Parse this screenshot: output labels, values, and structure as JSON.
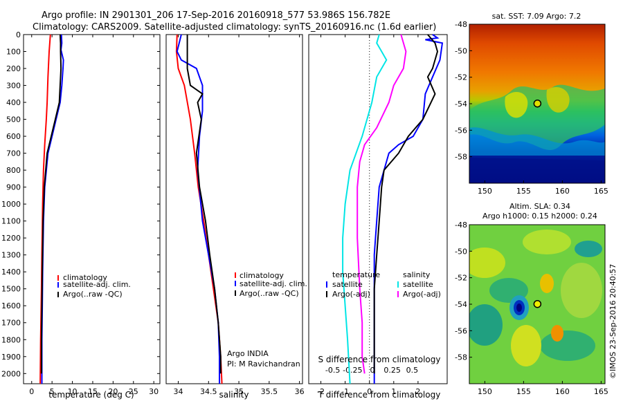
{
  "header": {
    "line1": "Argo profile: IN 2901301_206 17-Sep-2016 20160918_577 53.986S 156.782E",
    "line2": "Climatology: CARS2009. Satellite-adjusted climatology: synTS_20160916.nc (1.6d earlier)"
  },
  "colors": {
    "climatology": "#ff0000",
    "satellite": "#0000ff",
    "argo": "#000000",
    "sat_salinity": "#00e5e5",
    "argo_salinity": "#ff00ff"
  },
  "legend_prof": {
    "climatology": "climatology",
    "satellite": "satellite-adj. clim.",
    "argo": "Argo(..raw -QC)"
  },
  "legend_diff": {
    "temperature": "temperature",
    "salinity": "salinity",
    "satellite": "satellite",
    "argo": "Argo(-adj)"
  },
  "platform": {
    "line1": "Argo INDIA",
    "line2": "PI: M Ravichandran"
  },
  "sst_map": {
    "title": "sat. SST: 7.09 Argo: 7.2"
  },
  "sla_map": {
    "title1": "Altim. SLA: 0.34",
    "title2": "Argo h1000: 0.15 h2000: 0.24"
  },
  "credit": "©IMOS 23-Sep-2016 20:40:57",
  "chart_data": [
    {
      "type": "line",
      "xlabel": "temperature (deg C)",
      "xticks": [
        "0",
        "5",
        "10",
        "15",
        "20",
        "25",
        "30"
      ],
      "xlim": [
        -2,
        31.5
      ],
      "ylim": [
        0,
        2060
      ],
      "yticks": [
        "0",
        "100",
        "200",
        "300",
        "400",
        "500",
        "600",
        "700",
        "800",
        "900",
        "1000",
        "1100",
        "1200",
        "1300",
        "1400",
        "1500",
        "1600",
        "1700",
        "1800",
        "1900",
        "2000"
      ],
      "series": [
        {
          "name": "climatology",
          "color": "#ff0000",
          "points": [
            [
              4.6,
              0
            ],
            [
              4.3,
              100
            ],
            [
              4.0,
              250
            ],
            [
              3.8,
              400
            ],
            [
              3.6,
              500
            ],
            [
              3.2,
              650
            ],
            [
              2.9,
              800
            ],
            [
              2.7,
              1000
            ],
            [
              2.5,
              1300
            ],
            [
              2.4,
              1500
            ],
            [
              2.2,
              1800
            ],
            [
              2.1,
              2060
            ]
          ]
        },
        {
          "name": "satellite-adj. clim.",
          "color": "#0000ff",
          "points": [
            [
              7.3,
              0
            ],
            [
              7.4,
              50
            ],
            [
              7.2,
              90
            ],
            [
              7.8,
              150
            ],
            [
              7.7,
              200
            ],
            [
              7.4,
              300
            ],
            [
              7.0,
              400
            ],
            [
              6.0,
              500
            ],
            [
              5.0,
              600
            ],
            [
              4.0,
              700
            ],
            [
              3.2,
              900
            ],
            [
              2.9,
              1100
            ],
            [
              2.7,
              1400
            ],
            [
              2.6,
              1600
            ],
            [
              2.5,
              1800
            ],
            [
              2.5,
              2060
            ]
          ]
        },
        {
          "name": "Argo(..raw -QC)",
          "color": "#000000",
          "points": [
            [
              7.0,
              0
            ],
            [
              7.1,
              50
            ],
            [
              7.1,
              100
            ],
            [
              7.2,
              200
            ],
            [
              7.0,
              300
            ],
            [
              6.8,
              400
            ],
            [
              5.8,
              500
            ],
            [
              4.8,
              600
            ],
            [
              3.8,
              700
            ],
            [
              3.1,
              900
            ],
            [
              2.8,
              1100
            ],
            [
              2.6,
              1400
            ],
            [
              2.5,
              1600
            ],
            [
              2.4,
              1800
            ],
            [
              2.4,
              2000
            ]
          ]
        }
      ]
    },
    {
      "type": "line",
      "xlabel": "salinity",
      "xticks": [
        "34",
        "34.5",
        "35",
        "35.5",
        "36"
      ],
      "xlim": [
        33.8,
        36.05
      ],
      "ylim": [
        0,
        2060
      ],
      "series": [
        {
          "name": "climatology",
          "color": "#ff0000",
          "points": [
            [
              33.98,
              0
            ],
            [
              33.97,
              100
            ],
            [
              34.0,
              200
            ],
            [
              34.1,
              300
            ],
            [
              34.2,
              500
            ],
            [
              34.27,
              700
            ],
            [
              34.33,
              900
            ],
            [
              34.42,
              1100
            ],
            [
              34.5,
              1300
            ],
            [
              34.58,
              1500
            ],
            [
              34.66,
              1700
            ],
            [
              34.7,
              1900
            ],
            [
              34.72,
              2060
            ]
          ]
        },
        {
          "name": "satellite-adj. clim.",
          "color": "#0000ff",
          "points": [
            [
              34.05,
              0
            ],
            [
              33.98,
              100
            ],
            [
              34.05,
              150
            ],
            [
              34.3,
              200
            ],
            [
              34.4,
              300
            ],
            [
              34.4,
              450
            ],
            [
              34.35,
              600
            ],
            [
              34.32,
              800
            ],
            [
              34.4,
              1100
            ],
            [
              34.5,
              1300
            ],
            [
              34.6,
              1500
            ],
            [
              34.66,
              1700
            ],
            [
              34.68,
              1900
            ],
            [
              34.68,
              2060
            ]
          ]
        },
        {
          "name": "Argo(..raw -QC)",
          "color": "#000000",
          "points": [
            [
              34.15,
              0
            ],
            [
              34.15,
              100
            ],
            [
              34.15,
              200
            ],
            [
              34.2,
              300
            ],
            [
              34.4,
              350
            ],
            [
              34.32,
              400
            ],
            [
              34.38,
              500
            ],
            [
              34.3,
              700
            ],
            [
              34.35,
              900
            ],
            [
              34.45,
              1100
            ],
            [
              34.52,
              1300
            ],
            [
              34.6,
              1500
            ],
            [
              34.66,
              1700
            ],
            [
              34.7,
              1900
            ],
            [
              34.7,
              2000
            ]
          ]
        }
      ]
    },
    {
      "type": "line",
      "xlabel": "T difference from climatology",
      "xlabel_top": "S difference from climatology",
      "xticks": [
        "-2",
        "-1",
        "0",
        "1",
        "2"
      ],
      "xticks_top": [
        "-0.5",
        "-0.25",
        "0",
        "0.25",
        "0.5"
      ],
      "xlim": [
        -2.5,
        3.2
      ],
      "ylim": [
        0,
        2060
      ],
      "series": [
        {
          "name": "satellite (temperature)",
          "color": "#0000ff",
          "points": [
            [
              2.6,
              0
            ],
            [
              2.8,
              20
            ],
            [
              2.3,
              30
            ],
            [
              3.0,
              50
            ],
            [
              2.9,
              150
            ],
            [
              2.6,
              250
            ],
            [
              2.3,
              350
            ],
            [
              2.2,
              500
            ],
            [
              1.8,
              600
            ],
            [
              1.2,
              650
            ],
            [
              0.8,
              700
            ],
            [
              0.6,
              800
            ],
            [
              0.4,
              900
            ],
            [
              0.3,
              1100
            ],
            [
              0.2,
              1300
            ],
            [
              0.2,
              1500
            ],
            [
              0.2,
              1800
            ],
            [
              0.2,
              2060
            ]
          ]
        },
        {
          "name": "Argo(-adj) (temperature)",
          "color": "#000000",
          "points": [
            [
              2.4,
              0
            ],
            [
              2.7,
              50
            ],
            [
              2.8,
              100
            ],
            [
              2.6,
              200
            ],
            [
              2.4,
              250
            ],
            [
              2.7,
              350
            ],
            [
              2.2,
              500
            ],
            [
              1.6,
              600
            ],
            [
              1.2,
              700
            ],
            [
              0.6,
              800
            ],
            [
              0.5,
              900
            ],
            [
              0.4,
              1100
            ],
            [
              0.3,
              1300
            ],
            [
              0.2,
              1500
            ],
            [
              0.2,
              1800
            ],
            [
              0.2,
              2000
            ]
          ]
        },
        {
          "name": "satellite (salinity)",
          "color": "#00e5e5",
          "points": [
            [
              0.4,
              0
            ],
            [
              0.3,
              50
            ],
            [
              0.5,
              100
            ],
            [
              0.7,
              150
            ],
            [
              0.3,
              250
            ],
            [
              0.1,
              400
            ],
            [
              -0.3,
              600
            ],
            [
              -0.8,
              800
            ],
            [
              -1.0,
              1000
            ],
            [
              -1.1,
              1200
            ],
            [
              -1.1,
              1400
            ],
            [
              -1.0,
              1600
            ],
            [
              -0.9,
              1800
            ],
            [
              -0.8,
              2060
            ]
          ]
        },
        {
          "name": "Argo(-adj) (salinity)",
          "color": "#ff00ff",
          "points": [
            [
              1.3,
              0
            ],
            [
              1.5,
              100
            ],
            [
              1.4,
              200
            ],
            [
              1.0,
              300
            ],
            [
              0.8,
              400
            ],
            [
              0.3,
              550
            ],
            [
              -0.2,
              650
            ],
            [
              -0.4,
              750
            ],
            [
              -0.5,
              900
            ],
            [
              -0.5,
              1200
            ],
            [
              -0.4,
              1500
            ],
            [
              -0.3,
              1700
            ],
            [
              -0.3,
              1900
            ],
            [
              -0.2,
              2000
            ]
          ]
        }
      ]
    },
    {
      "type": "heatmap",
      "title": "sat. SST: 7.09 Argo: 7.2",
      "xticks": [
        "150",
        "155",
        "160",
        "165"
      ],
      "yticks": [
        "-48",
        "-50",
        "-52",
        "-54",
        "-56",
        "-58"
      ],
      "xlim": [
        148,
        165.5
      ],
      "ylim": [
        -60,
        -48
      ],
      "marker": {
        "lon": 156.782,
        "lat": -53.986
      }
    },
    {
      "type": "heatmap",
      "title": "Altim. SLA: 0.34",
      "subtitle": "Argo h1000: 0.15 h2000: 0.24",
      "xticks": [
        "150",
        "155",
        "160",
        "165"
      ],
      "yticks": [
        "-48",
        "-50",
        "-52",
        "-54",
        "-56",
        "-58"
      ],
      "xlim": [
        148,
        165.5
      ],
      "ylim": [
        -60,
        -48
      ],
      "marker": {
        "lon": 156.782,
        "lat": -53.986
      }
    }
  ]
}
